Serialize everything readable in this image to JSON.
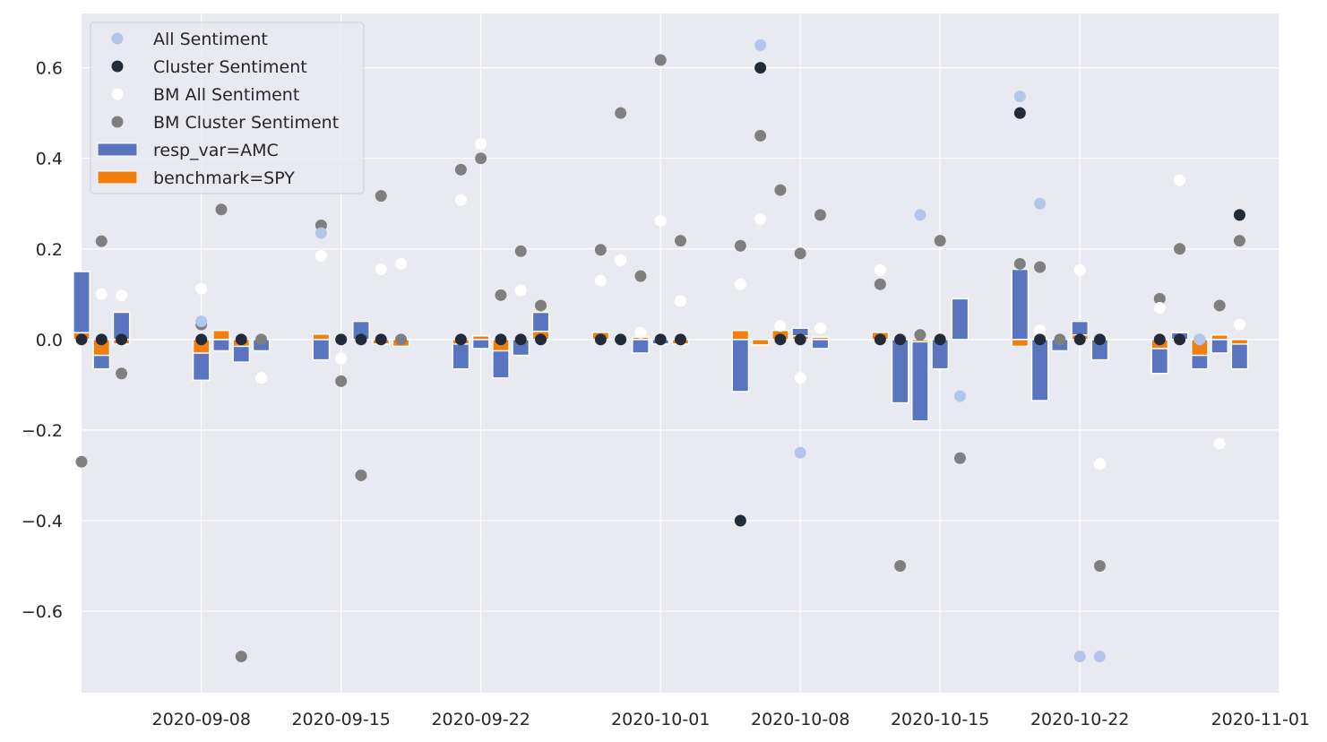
{
  "chart_data": {
    "type": "bar",
    "title": "",
    "xlabel": "",
    "ylabel": "",
    "xlim": [
      "2020-09-02",
      "2020-11-01"
    ],
    "ylim": [
      -0.78,
      0.72
    ],
    "grid": true,
    "legend_placement": "top-left",
    "x_ticks": [
      "2020-09-08",
      "2020-09-15",
      "2020-09-22",
      "2020-10-01",
      "2020-10-08",
      "2020-10-15",
      "2020-10-22",
      "2020-11-01"
    ],
    "y_ticks": [
      0.6,
      0.4,
      0.2,
      0.0,
      -0.2,
      -0.4,
      -0.6
    ],
    "y_tick_labels": [
      "0.6",
      "0.4",
      "0.2",
      "0.0",
      "−0.2",
      "−0.4",
      "−0.6"
    ],
    "dates": [
      "2020-09-02",
      "2020-09-03",
      "2020-09-04",
      "2020-09-08",
      "2020-09-09",
      "2020-09-10",
      "2020-09-11",
      "2020-09-14",
      "2020-09-15",
      "2020-09-16",
      "2020-09-17",
      "2020-09-18",
      "2020-09-21",
      "2020-09-22",
      "2020-09-23",
      "2020-09-24",
      "2020-09-25",
      "2020-09-28",
      "2020-09-29",
      "2020-09-30",
      "2020-10-01",
      "2020-10-02",
      "2020-10-05",
      "2020-10-06",
      "2020-10-07",
      "2020-10-08",
      "2020-10-09",
      "2020-10-12",
      "2020-10-13",
      "2020-10-14",
      "2020-10-15",
      "2020-10-16",
      "2020-10-19",
      "2020-10-20",
      "2020-10-21",
      "2020-10-22",
      "2020-10-23",
      "2020-10-26",
      "2020-10-27",
      "2020-10-28",
      "2020-10-29",
      "2020-10-30"
    ],
    "series": [
      {
        "name": "resp_var=AMC",
        "kind": "bar",
        "color": "#5975bf",
        "values": [
          0.15,
          -0.065,
          0.06,
          -0.09,
          -0.025,
          -0.05,
          -0.025,
          -0.045,
          0.0,
          0.04,
          0.0,
          0.0,
          -0.065,
          -0.02,
          -0.085,
          -0.035,
          0.06,
          0.0,
          0.0,
          -0.03,
          -0.01,
          0.0,
          -0.115,
          0.0,
          0.0,
          0.025,
          -0.02,
          0.0,
          -0.14,
          -0.18,
          -0.065,
          0.09,
          0.155,
          -0.135,
          -0.025,
          0.04,
          -0.045,
          -0.075,
          0.015,
          -0.065,
          -0.03,
          -0.065
        ]
      },
      {
        "name": "benchmark=SPY",
        "kind": "bar",
        "color": "#f07f10",
        "values": [
          0.015,
          -0.035,
          -0.01,
          -0.03,
          0.02,
          -0.015,
          0.0,
          0.012,
          0.0,
          0.0,
          -0.01,
          -0.015,
          -0.01,
          0.008,
          -0.025,
          0.0,
          0.018,
          0.016,
          0.0,
          0.005,
          0.0,
          -0.01,
          0.02,
          -0.012,
          0.02,
          0.008,
          0.005,
          0.016,
          0.0,
          -0.005,
          0.0,
          0.0,
          -0.015,
          0.0,
          0.0,
          0.01,
          0.0,
          -0.02,
          0.0,
          -0.035,
          0.01,
          -0.01
        ]
      },
      {
        "name": "All Sentiment",
        "kind": "scatter",
        "color": "#b4c5ec",
        "points": [
          [
            "2020-09-08",
            0.04
          ],
          [
            "2020-09-14",
            0.235
          ],
          [
            "2020-10-06",
            0.65
          ],
          [
            "2020-10-08",
            -0.25
          ],
          [
            "2020-10-14",
            0.275
          ],
          [
            "2020-10-16",
            -0.125
          ],
          [
            "2020-10-19",
            0.537
          ],
          [
            "2020-10-20",
            0.3
          ],
          [
            "2020-10-22",
            -0.7
          ],
          [
            "2020-10-23",
            -0.7
          ],
          [
            "2020-10-28",
            0.0
          ],
          [
            "2020-10-30",
            0.275
          ]
        ]
      },
      {
        "name": "Cluster Sentiment",
        "kind": "scatter",
        "color": "#232a39",
        "points": [
          [
            "2020-09-02",
            0.0
          ],
          [
            "2020-09-03",
            0.0
          ],
          [
            "2020-09-04",
            0.0
          ],
          [
            "2020-09-08",
            0.0
          ],
          [
            "2020-09-10",
            0.0
          ],
          [
            "2020-09-15",
            0.0
          ],
          [
            "2020-09-16",
            0.0
          ],
          [
            "2020-09-17",
            0.0
          ],
          [
            "2020-09-21",
            0.0
          ],
          [
            "2020-09-23",
            0.0
          ],
          [
            "2020-09-24",
            0.0
          ],
          [
            "2020-09-25",
            0.0
          ],
          [
            "2020-09-28",
            0.0
          ],
          [
            "2020-09-29",
            0.0
          ],
          [
            "2020-10-01",
            0.0
          ],
          [
            "2020-10-02",
            0.0
          ],
          [
            "2020-10-05",
            -0.4
          ],
          [
            "2020-10-06",
            0.6
          ],
          [
            "2020-10-07",
            0.0
          ],
          [
            "2020-10-08",
            0.0
          ],
          [
            "2020-10-12",
            0.0
          ],
          [
            "2020-10-13",
            0.0
          ],
          [
            "2020-10-15",
            0.0
          ],
          [
            "2020-10-19",
            0.5
          ],
          [
            "2020-10-20",
            0.0
          ],
          [
            "2020-10-22",
            0.0
          ],
          [
            "2020-10-23",
            0.0
          ],
          [
            "2020-10-26",
            0.0
          ],
          [
            "2020-10-27",
            0.0
          ],
          [
            "2020-10-30",
            0.275
          ]
        ]
      },
      {
        "name": "BM All Sentiment",
        "kind": "scatter",
        "color": "#ffffff",
        "points": [
          [
            "2020-09-03",
            0.1
          ],
          [
            "2020-09-04",
            0.097
          ],
          [
            "2020-09-08",
            0.112
          ],
          [
            "2020-09-11",
            -0.085
          ],
          [
            "2020-09-14",
            0.185
          ],
          [
            "2020-09-15",
            -0.042
          ],
          [
            "2020-09-17",
            0.155
          ],
          [
            "2020-09-18",
            0.167
          ],
          [
            "2020-09-21",
            0.308
          ],
          [
            "2020-09-22",
            0.432
          ],
          [
            "2020-09-24",
            0.108
          ],
          [
            "2020-09-28",
            0.13
          ],
          [
            "2020-09-29",
            0.175
          ],
          [
            "2020-09-30",
            0.015
          ],
          [
            "2020-10-01",
            0.262
          ],
          [
            "2020-10-02",
            0.085
          ],
          [
            "2020-10-05",
            0.122
          ],
          [
            "2020-10-06",
            0.266
          ],
          [
            "2020-10-07",
            0.03
          ],
          [
            "2020-10-08",
            -0.085
          ],
          [
            "2020-10-09",
            0.025
          ],
          [
            "2020-10-12",
            0.153
          ],
          [
            "2020-10-20",
            0.02
          ],
          [
            "2020-10-22",
            0.153
          ],
          [
            "2020-10-23",
            -0.275
          ],
          [
            "2020-10-26",
            0.07
          ],
          [
            "2020-10-27",
            0.352
          ],
          [
            "2020-10-29",
            -0.23
          ],
          [
            "2020-10-30",
            0.033
          ]
        ]
      },
      {
        "name": "BM Cluster Sentiment",
        "kind": "scatter",
        "color": "#7f7f7f",
        "points": [
          [
            "2020-09-02",
            -0.27
          ],
          [
            "2020-09-03",
            0.217
          ],
          [
            "2020-09-04",
            -0.075
          ],
          [
            "2020-09-08",
            0.033
          ],
          [
            "2020-09-09",
            0.287
          ],
          [
            "2020-09-10",
            -0.7
          ],
          [
            "2020-09-11",
            0.0
          ],
          [
            "2020-09-14",
            0.252
          ],
          [
            "2020-09-15",
            -0.092
          ],
          [
            "2020-09-16",
            -0.3
          ],
          [
            "2020-09-17",
            0.317
          ],
          [
            "2020-09-18",
            0.0
          ],
          [
            "2020-09-21",
            0.375
          ],
          [
            "2020-09-22",
            0.4
          ],
          [
            "2020-09-23",
            0.098
          ],
          [
            "2020-09-24",
            0.195
          ],
          [
            "2020-09-25",
            0.075
          ],
          [
            "2020-09-28",
            0.198
          ],
          [
            "2020-09-29",
            0.5
          ],
          [
            "2020-09-30",
            0.14
          ],
          [
            "2020-10-01",
            0.617
          ],
          [
            "2020-10-02",
            0.218
          ],
          [
            "2020-10-05",
            0.207
          ],
          [
            "2020-10-06",
            0.45
          ],
          [
            "2020-10-07",
            0.33
          ],
          [
            "2020-10-08",
            0.19
          ],
          [
            "2020-10-09",
            0.275
          ],
          [
            "2020-10-12",
            0.122
          ],
          [
            "2020-10-13",
            -0.5
          ],
          [
            "2020-10-14",
            0.01
          ],
          [
            "2020-10-15",
            0.218
          ],
          [
            "2020-10-16",
            -0.262
          ],
          [
            "2020-10-19",
            0.167
          ],
          [
            "2020-10-20",
            0.16
          ],
          [
            "2020-10-21",
            0.0
          ],
          [
            "2020-10-23",
            -0.5
          ],
          [
            "2020-10-26",
            0.09
          ],
          [
            "2020-10-27",
            0.2
          ],
          [
            "2020-10-28",
            0.0
          ],
          [
            "2020-10-29",
            0.075
          ],
          [
            "2020-10-30",
            0.218
          ]
        ]
      }
    ]
  },
  "legend": [
    {
      "label": "All Sentiment",
      "kind": "scatter",
      "color": "#b4c5ec"
    },
    {
      "label": "Cluster Sentiment",
      "kind": "scatter",
      "color": "#232a39"
    },
    {
      "label": "BM All Sentiment",
      "kind": "scatter",
      "color": "#ffffff"
    },
    {
      "label": "BM Cluster Sentiment",
      "kind": "scatter",
      "color": "#7f7f7f"
    },
    {
      "label": "resp_var=AMC",
      "kind": "bar",
      "color": "#5975bf"
    },
    {
      "label": "benchmark=SPY",
      "kind": "bar",
      "color": "#f07f10"
    }
  ],
  "colors": {
    "plot_background": "#e9e9f1",
    "grid": "#ffffff"
  }
}
